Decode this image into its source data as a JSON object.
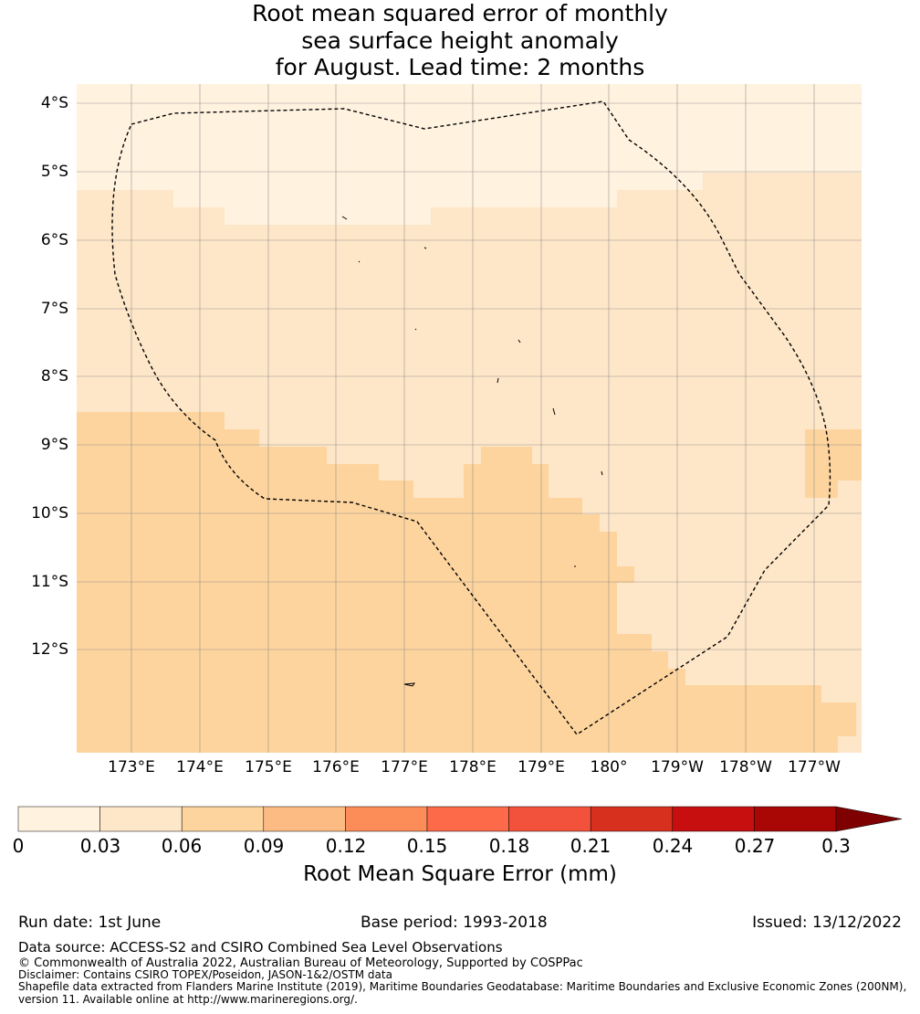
{
  "title": {
    "line1": "Root mean squared error of monthly",
    "line2": "sea surface height anomaly",
    "line3": "for August. Lead time: 2 months"
  },
  "map": {
    "lat_labels": [
      "4°S",
      "5°S",
      "6°S",
      "7°S",
      "8°S",
      "9°S",
      "10°S",
      "11°S",
      "12°S"
    ],
    "lon_labels": [
      "173°E",
      "174°E",
      "175°E",
      "176°E",
      "177°E",
      "178°E",
      "179°E",
      "180°",
      "179°W",
      "178°W",
      "177°W"
    ],
    "colors": {
      "lightest": "#fff2df",
      "light": "#fee6c8",
      "medium": "#fdd49e",
      "boundary": "#000000",
      "grid": "#808080"
    }
  },
  "colorbar": {
    "ticks": [
      "0",
      "0.03",
      "0.06",
      "0.09",
      "0.12",
      "0.15",
      "0.18",
      "0.21",
      "0.24",
      "0.27",
      "0.3"
    ],
    "colors": [
      "#fff2df",
      "#fee6c8",
      "#fdd49e",
      "#fdbb84",
      "#fc8d59",
      "#fc6a4a",
      "#f2523b",
      "#d7301f",
      "#c80f0f",
      "#a90606",
      "#7f0000"
    ],
    "label": "Root Mean Square Error (mm)"
  },
  "footer": {
    "run_date": "Run date: 1st June",
    "base_period": "Base period: 1993-2018",
    "issued": "Issued: 13/12/2022",
    "data_source": "Data source: ACCESS-S2 and CSIRO Combined Sea Level Observations",
    "copyright": "© Commonwealth of Australia 2022, Australian Bureau of Meteorology, Supported by COSPPac",
    "disclaimer": "Disclaimer: Contains CSIRO TOPEX/Poseidon, JASON-1&2/OSTM data",
    "shapefile": "Shapefile data extracted from Flanders Marine Institute (2019), Maritime Boundaries Geodatabase: Maritime Boundaries and Exclusive Economic Zones (200NM),",
    "version": "version 11. Available online at http://www.marineregions.org/."
  }
}
